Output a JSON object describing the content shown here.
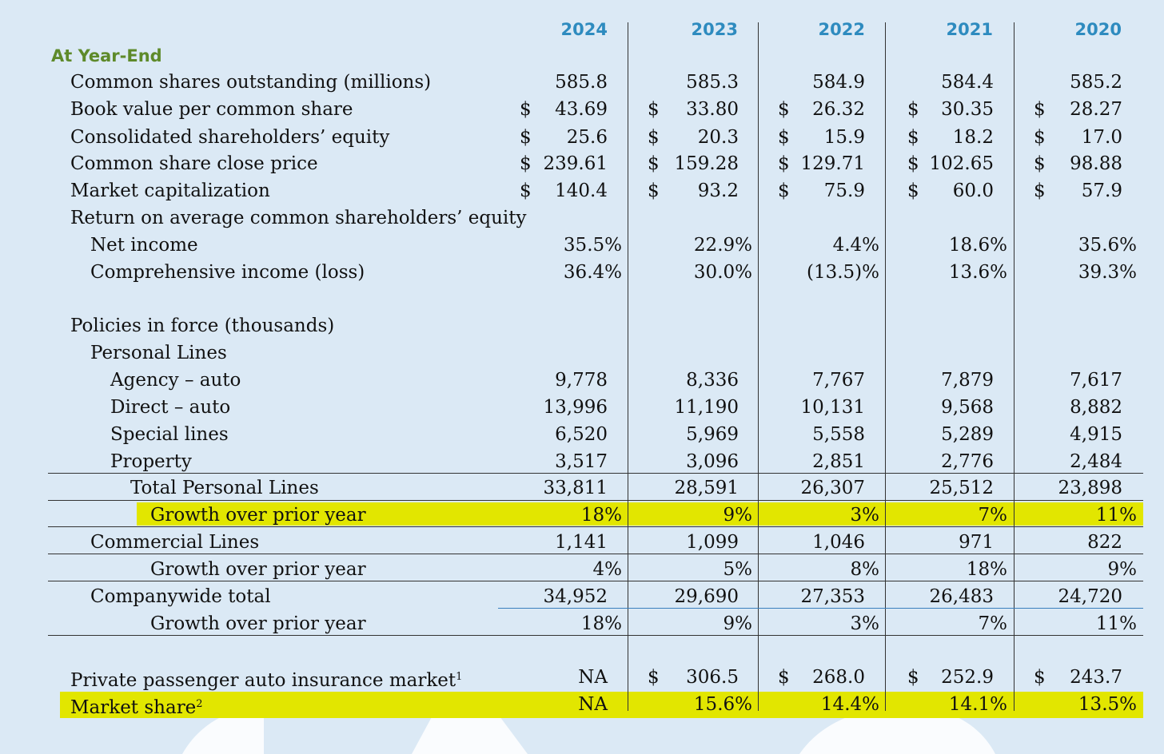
{
  "section_title": "At Year-End",
  "years": [
    "2024",
    "2023",
    "2022",
    "2021",
    "2020"
  ],
  "rows": [
    {
      "label": "Common shares outstanding (millions)",
      "values": [
        "585.8",
        "585.3",
        "584.9",
        "584.4",
        "585.2"
      ],
      "dollar": [
        false,
        false,
        false,
        false,
        false
      ]
    },
    {
      "label": "Book value per common share",
      "values": [
        "43.69",
        "33.80",
        "26.32",
        "30.35",
        "28.27"
      ],
      "dollar": [
        true,
        true,
        true,
        true,
        true
      ]
    },
    {
      "label": "Consolidated shareholders’ equity",
      "values": [
        "25.6",
        "20.3",
        "15.9",
        "18.2",
        "17.0"
      ],
      "dollar": [
        true,
        true,
        true,
        true,
        true
      ]
    },
    {
      "label": "Common share close price",
      "values": [
        "239.61",
        "159.28",
        "129.71",
        "102.65",
        "98.88"
      ],
      "dollar": [
        true,
        true,
        true,
        true,
        true
      ]
    },
    {
      "label": "Market capitalization",
      "values": [
        "140.4",
        "93.2",
        "75.9",
        "60.0",
        "57.9"
      ],
      "dollar": [
        true,
        true,
        true,
        true,
        true
      ]
    },
    {
      "label": "Return on average common shareholders’ equity",
      "values": [
        "",
        "",
        "",
        "",
        ""
      ],
      "dollar": [
        false,
        false,
        false,
        false,
        false
      ]
    },
    {
      "label": "Net income",
      "values": [
        "35.5%",
        "22.9%",
        "4.4%",
        "18.6%",
        "35.6%"
      ],
      "dollar": [
        false,
        false,
        false,
        false,
        false
      ]
    },
    {
      "label": "Comprehensive income (loss)",
      "values": [
        "36.4%",
        "30.0%",
        "(13.5)%",
        "13.6%",
        "39.3%"
      ],
      "dollar": [
        false,
        false,
        false,
        false,
        false
      ]
    },
    {
      "label": "Policies in force (thousands)",
      "values": [
        "",
        "",
        "",
        "",
        ""
      ],
      "dollar": [
        false,
        false,
        false,
        false,
        false
      ]
    },
    {
      "label": "Personal Lines",
      "values": [
        "",
        "",
        "",
        "",
        ""
      ],
      "dollar": [
        false,
        false,
        false,
        false,
        false
      ]
    },
    {
      "label": "Agency – auto",
      "values": [
        "9,778",
        "8,336",
        "7,767",
        "7,879",
        "7,617"
      ],
      "dollar": [
        false,
        false,
        false,
        false,
        false
      ]
    },
    {
      "label": "Direct – auto",
      "values": [
        "13,996",
        "11,190",
        "10,131",
        "9,568",
        "8,882"
      ],
      "dollar": [
        false,
        false,
        false,
        false,
        false
      ]
    },
    {
      "label": "Special lines",
      "values": [
        "6,520",
        "5,969",
        "5,558",
        "5,289",
        "4,915"
      ],
      "dollar": [
        false,
        false,
        false,
        false,
        false
      ]
    },
    {
      "label": "Property",
      "values": [
        "3,517",
        "3,096",
        "2,851",
        "2,776",
        "2,484"
      ],
      "dollar": [
        false,
        false,
        false,
        false,
        false
      ]
    },
    {
      "label": "Total Personal Lines",
      "values": [
        "33,811",
        "28,591",
        "26,307",
        "25,512",
        "23,898"
      ],
      "dollar": [
        false,
        false,
        false,
        false,
        false
      ]
    },
    {
      "label": "Growth over prior year",
      "values": [
        "18%",
        "9%",
        "3%",
        "7%",
        "11%"
      ],
      "dollar": [
        false,
        false,
        false,
        false,
        false
      ]
    },
    {
      "label": "Commercial Lines",
      "values": [
        "1,141",
        "1,099",
        "1,046",
        "971",
        "822"
      ],
      "dollar": [
        false,
        false,
        false,
        false,
        false
      ]
    },
    {
      "label": "Growth over prior year",
      "values": [
        "4%",
        "5%",
        "8%",
        "18%",
        "9%"
      ],
      "dollar": [
        false,
        false,
        false,
        false,
        false
      ]
    },
    {
      "label": "Companywide total",
      "values": [
        "34,952",
        "29,690",
        "27,353",
        "26,483",
        "24,720"
      ],
      "dollar": [
        false,
        false,
        false,
        false,
        false
      ]
    },
    {
      "label": "Growth over prior year",
      "values": [
        "18%",
        "9%",
        "3%",
        "7%",
        "11%"
      ],
      "dollar": [
        false,
        false,
        false,
        false,
        false
      ]
    },
    {
      "label": "Private passenger auto insurance market",
      "footnote": "1",
      "values": [
        "NA",
        "306.5",
        "268.0",
        "252.9",
        "243.7"
      ],
      "dollar": [
        false,
        true,
        true,
        true,
        true
      ]
    },
    {
      "label": "Market share",
      "footnote": "2",
      "values": [
        "NA",
        "15.6%",
        "14.4%",
        "14.1%",
        "13.5%"
      ],
      "dollar": [
        false,
        false,
        false,
        false,
        false
      ]
    }
  ]
}
